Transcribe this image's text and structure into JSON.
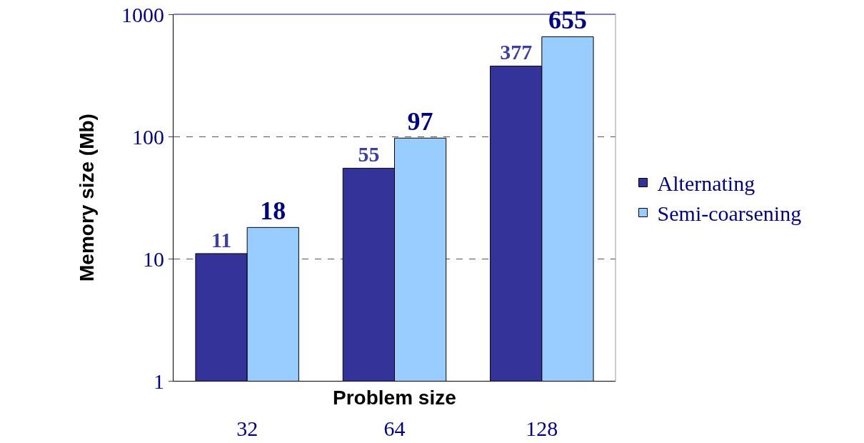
{
  "chart_data": {
    "type": "bar",
    "categories": [
      "32",
      "64",
      "128"
    ],
    "series": [
      {
        "name": "Alternating",
        "color": "#333399",
        "values": [
          11,
          55,
          377
        ]
      },
      {
        "name": "Semi-coarsening",
        "color": "#99ccff",
        "values": [
          18,
          97,
          655
        ]
      }
    ],
    "xlabel": "Problem size",
    "ylabel": "Memory size (Mb)",
    "log": "y",
    "ylim": [
      1,
      1000
    ],
    "yticks": [
      1,
      10,
      100,
      1000
    ],
    "grid": "y",
    "legend": "right",
    "data_labels": true
  }
}
